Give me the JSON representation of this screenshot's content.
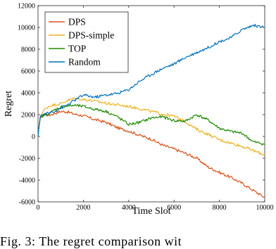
{
  "chart_data": {
    "type": "line",
    "xlabel": "Time Slot",
    "ylabel": "Regret",
    "xlim": [
      0,
      10000
    ],
    "ylim": [
      -6000,
      12000
    ],
    "xticks": [
      "0",
      "2000",
      "4000",
      "6000",
      "8000",
      "10000"
    ],
    "yticks": [
      "-6000",
      "-4000",
      "-2000",
      "0",
      "2000",
      "4000",
      "6000",
      "8000",
      "10000",
      "12000"
    ],
    "grid": false,
    "legend_position": "top-left",
    "x": [
      0,
      100,
      300,
      500,
      700,
      1000,
      1300,
      1600,
      2000,
      2500,
      3000,
      3500,
      4000,
      4500,
      5000,
      5500,
      6000,
      6500,
      7000,
      7500,
      8000,
      8500,
      9000,
      9500,
      10000
    ],
    "series": [
      {
        "name": "DPS",
        "color": "#D95319",
        "values": [
          0,
          1800,
          2000,
          1950,
          2100,
          2300,
          2250,
          2050,
          1900,
          1550,
          1300,
          800,
          500,
          100,
          -250,
          -800,
          -1150,
          -1550,
          -2000,
          -2800,
          -3300,
          -3750,
          -4300,
          -4950,
          -5600
        ]
      },
      {
        "name": "DPS-simple",
        "color": "#EDB120",
        "values": [
          0,
          1900,
          2500,
          2800,
          2900,
          3000,
          3300,
          3500,
          3400,
          3250,
          3050,
          2900,
          2750,
          2550,
          2300,
          2050,
          1850,
          1350,
          650,
          200,
          -300,
          -600,
          -900,
          -1300,
          -1700
        ]
      },
      {
        "name": "TOP",
        "color": "#1E8A00",
        "values": [
          0,
          1750,
          2000,
          2100,
          2400,
          2700,
          2800,
          2850,
          2750,
          2500,
          2300,
          1800,
          1100,
          1300,
          1700,
          1800,
          1450,
          1400,
          2000,
          1500,
          750,
          450,
          300,
          -500,
          -700
        ]
      },
      {
        "name": "Random",
        "color": "#0072BD",
        "values": [
          0,
          1900,
          2050,
          2150,
          2300,
          2600,
          2900,
          3300,
          3800,
          3600,
          3800,
          3950,
          4300,
          5100,
          5700,
          6250,
          6650,
          7250,
          7700,
          8150,
          8700,
          9050,
          9800,
          10200,
          10000
        ]
      }
    ]
  },
  "caption": "Fig. 3: The regret comparison wit"
}
